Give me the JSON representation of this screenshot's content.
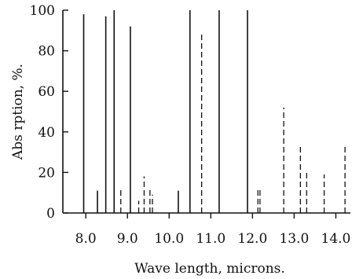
{
  "chart_data": {
    "type": "bar",
    "xlabel": "Wave length, microns.",
    "ylabel": "Abs rption, %.",
    "xlim": [
      7.45,
      14.35
    ],
    "ylim": [
      0,
      100
    ],
    "x_ticks": [
      "8.0",
      "9.0",
      "10.0",
      "11.0",
      "12.0",
      "13.0",
      "14.0"
    ],
    "x_tick_values": [
      8.0,
      9.0,
      10.0,
      11.0,
      12.0,
      13.0,
      14.0
    ],
    "y_ticks": [
      "0",
      "20",
      "40",
      "60",
      "80",
      "100"
    ],
    "y_tick_values": [
      0,
      20,
      40,
      60,
      80,
      100
    ],
    "series": [
      {
        "line_style": "solid",
        "points": [
          {
            "x": 7.95,
            "y": 98
          },
          {
            "x": 8.28,
            "y": 11
          },
          {
            "x": 8.48,
            "y": 97
          },
          {
            "x": 8.68,
            "y": 100
          },
          {
            "x": 9.07,
            "y": 92
          },
          {
            "x": 10.22,
            "y": 11
          },
          {
            "x": 10.5,
            "y": 100
          },
          {
            "x": 11.2,
            "y": 100
          },
          {
            "x": 11.88,
            "y": 100
          }
        ]
      },
      {
        "line_style": "dashed",
        "points": [
          {
            "x": 8.84,
            "y": 12
          },
          {
            "x": 9.27,
            "y": 6
          },
          {
            "x": 9.4,
            "y": 18
          },
          {
            "x": 9.54,
            "y": 12
          },
          {
            "x": 9.6,
            "y": 9
          },
          {
            "x": 10.78,
            "y": 89
          },
          {
            "x": 12.13,
            "y": 12
          },
          {
            "x": 12.18,
            "y": 12
          },
          {
            "x": 12.75,
            "y": 52
          },
          {
            "x": 13.15,
            "y": 33
          },
          {
            "x": 13.3,
            "y": 21
          },
          {
            "x": 13.72,
            "y": 19
          },
          {
            "x": 14.22,
            "y": 34
          }
        ]
      }
    ],
    "grid": false,
    "legend": "none"
  }
}
